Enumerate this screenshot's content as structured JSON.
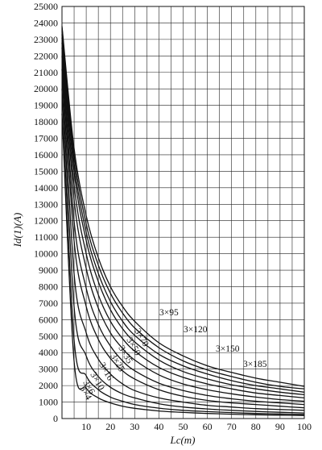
{
  "chart_data": {
    "type": "line",
    "title": "",
    "xlabel": "Lc(m)",
    "ylabel": "Id(1)(A)",
    "xlim": [
      0,
      100
    ],
    "ylim": [
      0,
      25000
    ],
    "grid": true,
    "x_ticks": [
      10,
      20,
      30,
      40,
      50,
      60,
      70,
      80,
      90,
      100
    ],
    "y_ticks": [
      0,
      1000,
      2000,
      3000,
      4000,
      5000,
      6000,
      7000,
      8000,
      9000,
      10000,
      11000,
      12000,
      13000,
      14000,
      15000,
      16000,
      17000,
      18000,
      19000,
      20000,
      21000,
      22000,
      23000,
      24000,
      25000
    ],
    "x": [
      0,
      5,
      10,
      15,
      20,
      25,
      30,
      40,
      50,
      60,
      70,
      80,
      90,
      100
    ],
    "series": [
      {
        "name": "3×185",
        "values": [
          23800,
          16400,
          12300,
          9750,
          8000,
          6800,
          5900,
          4600,
          3800,
          3200,
          2800,
          2450,
          2200,
          1950
        ]
      },
      {
        "name": "3×150",
        "values": [
          23700,
          16000,
          11800,
          9300,
          7600,
          6400,
          5500,
          4300,
          3500,
          2950,
          2550,
          2200,
          1950,
          1800
        ]
      },
      {
        "name": "3×120",
        "values": [
          23600,
          15500,
          11300,
          8800,
          7100,
          5900,
          5050,
          3900,
          3200,
          2700,
          2300,
          2000,
          1800,
          1600
        ]
      },
      {
        "name": "3×95",
        "values": [
          23500,
          15000,
          10800,
          8300,
          6600,
          5450,
          4650,
          3550,
          2850,
          2400,
          2050,
          1800,
          1600,
          1450
        ]
      },
      {
        "name": "3×70",
        "values": [
          23300,
          14200,
          10000,
          7500,
          5900,
          4850,
          4100,
          3100,
          2500,
          2100,
          1800,
          1550,
          1400,
          1250
        ]
      },
      {
        "name": "3×50",
        "values": [
          23100,
          13300,
          9100,
          6700,
          5200,
          4250,
          3550,
          2650,
          2100,
          1750,
          1500,
          1300,
          1150,
          1050
        ]
      },
      {
        "name": "3×35",
        "values": [
          22800,
          12000,
          7900,
          5700,
          4400,
          3500,
          2900,
          2150,
          1700,
          1400,
          1200,
          1050,
          950,
          850
        ]
      },
      {
        "name": "3×25",
        "values": [
          22500,
          10800,
          6800,
          4800,
          3650,
          2900,
          2400,
          1750,
          1350,
          1100,
          950,
          850,
          750,
          650
        ]
      },
      {
        "name": "3×16",
        "values": [
          22000,
          8800,
          5200,
          3600,
          2700,
          2100,
          1700,
          1250,
          1000,
          800,
          700,
          600,
          550,
          500
        ]
      },
      {
        "name": "3×10",
        "values": [
          21200,
          6800,
          3800,
          2550,
          1900,
          1500,
          1250,
          900,
          700,
          580,
          500,
          430,
          380,
          340
        ]
      },
      {
        "name": "3×6",
        "values": [
          20000,
          4800,
          2600,
          1750,
          1300,
          1050,
          850,
          630,
          500,
          420,
          360,
          310,
          280,
          250
        ]
      },
      {
        "name": "3×4",
        "values": [
          18500,
          3500,
          1850,
          1250,
          950,
          750,
          620,
          460,
          370,
          310,
          265,
          230,
          205,
          185
        ]
      }
    ],
    "labels": [
      "3×95",
      "3×120",
      "3×150",
      "3×185",
      "3×70",
      "3×50",
      "3×35",
      "3×25",
      "3×16",
      "3×10",
      "3×6",
      "3×4"
    ]
  }
}
